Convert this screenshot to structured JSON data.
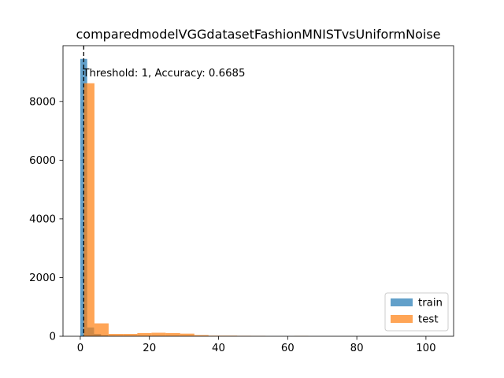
{
  "chart_data": {
    "type": "histogram",
    "title": "comparedmodelVGGdatasetFashionMNISTvsUniformNoise",
    "xlabel": "",
    "ylabel": "",
    "xlim": [
      -5,
      108
    ],
    "ylim": [
      0,
      9900
    ],
    "x_ticks": [
      0,
      20,
      40,
      60,
      80,
      100
    ],
    "y_ticks": [
      0,
      2000,
      4000,
      6000,
      8000
    ],
    "grid": false,
    "legend_position": "lower right",
    "annotation": {
      "text": "Threshold: 1, Accuracy: 0.6685",
      "threshold_x": 1
    },
    "series": [
      {
        "name": "train",
        "color": "#1f77b4",
        "opacity": 0.7,
        "bin_edges": [
          0.0,
          2.0,
          4.0,
          6.0,
          8.0,
          10.0
        ],
        "counts": [
          9450,
          300,
          80,
          30,
          10
        ]
      },
      {
        "name": "test",
        "color": "#ff7f0e",
        "opacity": 0.7,
        "bin_edges": [
          1.0,
          4.1,
          8.2,
          12.4,
          16.5,
          20.6,
          24.7,
          28.9,
          33.0,
          37.1,
          41.2,
          45.4,
          49.5,
          53.6,
          57.7,
          61.9,
          66.0
        ],
        "counts": [
          8620,
          440,
          80,
          80,
          110,
          120,
          110,
          90,
          40,
          20,
          20,
          15,
          12,
          0,
          0,
          10
        ]
      }
    ]
  }
}
